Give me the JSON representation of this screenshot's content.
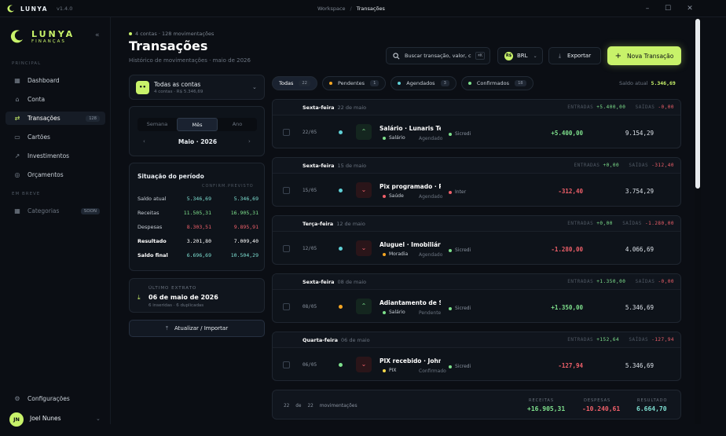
{
  "titlebar": {
    "app": "LUNYA",
    "version": "v1.4.0",
    "crumb_root": "Workspace",
    "crumb_current": "Transações",
    "minimize": "–",
    "maximize": "☐",
    "close": "✕"
  },
  "sidebar": {
    "brand": "LUNYA",
    "brand_sub": "FINANÇAS",
    "collapse": "«",
    "section_main": "PRINCIPAL",
    "section_soon": "EM BREVE",
    "items": [
      {
        "label": "Dashboard",
        "icon": "grid-icon",
        "glyph": "▦"
      },
      {
        "label": "Conta",
        "icon": "bank-icon",
        "glyph": "⌂"
      },
      {
        "label": "Transações",
        "icon": "transfer-icon",
        "glyph": "⇄",
        "badge": "128"
      },
      {
        "label": "Cartões",
        "icon": "card-icon",
        "glyph": "▭"
      },
      {
        "label": "Investimentos",
        "icon": "trend-icon",
        "glyph": "↗"
      },
      {
        "label": "Orçamentos",
        "icon": "target-icon",
        "glyph": "◎"
      }
    ],
    "soon": {
      "label": "Categorias",
      "icon": "grid-icon",
      "glyph": "▦",
      "badge": "SOON"
    },
    "settings": {
      "label": "Configurações",
      "icon": "gear-icon",
      "glyph": "⚙"
    },
    "user": {
      "initials": "JN",
      "name": "Joel Nunes",
      "chev": "⌄"
    }
  },
  "header": {
    "subtitle": "4 contas · 128 movimentações",
    "title": "Transações",
    "description": "Histórico de movimentações · maio de 2026"
  },
  "toolbar": {
    "search_placeholder": "Buscar transação, valor, c",
    "search_kbd": "⌘K",
    "currency_symbol": "R$",
    "currency": "BRL",
    "export_label": "Exportar",
    "new_label": "Nova Transação"
  },
  "account": {
    "title": "Todas as contas",
    "subtitle": "4 contas · R$ 5.346,69",
    "icon": "••"
  },
  "period": {
    "tabs": [
      "Semana",
      "Mês",
      "Ano"
    ],
    "active": "Mês",
    "month": "Maio · 2026",
    "prev": "‹",
    "next": "›"
  },
  "situation": {
    "title": "Situação do período",
    "col_confirmed": "CONFIRM.",
    "col_forecast": "PREVISTO",
    "rows": [
      {
        "label": "Saldo atual",
        "confirmed": "5.346,69",
        "forecast": "5.346,69",
        "color": "#7ee0d2"
      },
      {
        "label": "Receitas",
        "confirmed": "11.505,31",
        "forecast": "16.905,31",
        "color": "#7ee08c"
      },
      {
        "label": "Despesas",
        "confirmed": "8.303,51",
        "forecast": "9.895,91",
        "color": "#f0606a"
      },
      {
        "label": "Resultado",
        "confirmed": "3.201,80",
        "forecast": "7.009,40",
        "color": "#ffffff"
      },
      {
        "label": "Saldo final",
        "confirmed": "6.696,69",
        "forecast": "10.504,29",
        "color": "#7ee0d2"
      }
    ]
  },
  "last_statement": {
    "label": "ÚLTIMO EXTRATO",
    "date": "06 de maio de 2026",
    "detail": "6 inseridas · 6 duplicadas"
  },
  "import_label": "Atualizar / Importar",
  "filters": [
    {
      "label": "Todas",
      "count": "22",
      "dot": ""
    },
    {
      "label": "Pendentes",
      "count": "1",
      "dot": "#f5a623"
    },
    {
      "label": "Agendados",
      "count": "3",
      "dot": "#5fd0d6"
    },
    {
      "label": "Confirmados",
      "count": "18",
      "dot": "#7ee08c"
    }
  ],
  "saldo": {
    "label": "Saldo atual",
    "value": "5.346,69"
  },
  "groups": [
    {
      "day": "Sexta-feira",
      "date": "22 de maio",
      "in": "+5.400,00",
      "out": "-0,00",
      "tx": {
        "date": "22/05",
        "status": "#5fd0d6",
        "dir": "in",
        "name": "Salário · Lunaris Tech",
        "cat": "Salário",
        "cat_color": "#7ee08c",
        "state": "Agendado",
        "bank": "Sicredi",
        "bank_color": "#7ee08c",
        "value": "+5.400,00",
        "balance": "9.154,29"
      }
    },
    {
      "day": "Sexta-feira",
      "date": "15 de maio",
      "in": "+0,00",
      "out": "-312,40",
      "tx": {
        "date": "15/05",
        "status": "#5fd0d6",
        "dir": "out",
        "name": "Pix programado · Pl...",
        "cat": "Saúde",
        "cat_color": "#f0606a",
        "state": "Agendado",
        "bank": "Inter",
        "bank_color": "#f0606a",
        "value": "-312,40",
        "balance": "3.754,29"
      }
    },
    {
      "day": "Terça-feira",
      "date": "12 de maio",
      "in": "+0,00",
      "out": "-1.280,00",
      "tx": {
        "date": "12/05",
        "status": "#5fd0d6",
        "dir": "out",
        "name": "Aluguel · Imobiliári...",
        "cat": "Moradia",
        "cat_color": "#f5a623",
        "state": "Agendado",
        "bank": "Sicredi",
        "bank_color": "#7ee08c",
        "value": "-1.280,00",
        "balance": "4.066,69"
      }
    },
    {
      "day": "Sexta-feira",
      "date": "08 de maio",
      "in": "+1.350,00",
      "out": "-0,00",
      "tx": {
        "date": "08/05",
        "status": "#f5a623",
        "dir": "in",
        "name": "Adiantamento de S...",
        "cat": "Salário",
        "cat_color": "#7ee08c",
        "state": "Pendente",
        "bank": "Sicredi",
        "bank_color": "#7ee08c",
        "value": "+1.350,00",
        "balance": "5.346,69"
      }
    },
    {
      "day": "Quarta-feira",
      "date": "06 de maio",
      "in": "+152,64",
      "out": "-127,94",
      "tx": {
        "date": "06/05",
        "status": "#7ee08c",
        "dir": "out",
        "name": "PIX recebido · John...",
        "cat": "PIX",
        "cat_color": "#f5d84a",
        "state": "Confirmado",
        "bank": "Sicredi",
        "bank_color": "#7ee08c",
        "value": "-127,94",
        "balance": "5.346,69"
      }
    }
  ],
  "footer": {
    "shown": "22",
    "of": "de",
    "total": "22",
    "unit": "movimentações",
    "income_label": "RECEITAS",
    "income": "+16.905,31",
    "expense_label": "DESPESAS",
    "expense": "-10.240,61",
    "result_label": "RESULTADO",
    "result": "6.664,70"
  },
  "colors": {
    "accent": "#c8f26a",
    "income": "#7ee08c",
    "expense": "#f0606a"
  }
}
